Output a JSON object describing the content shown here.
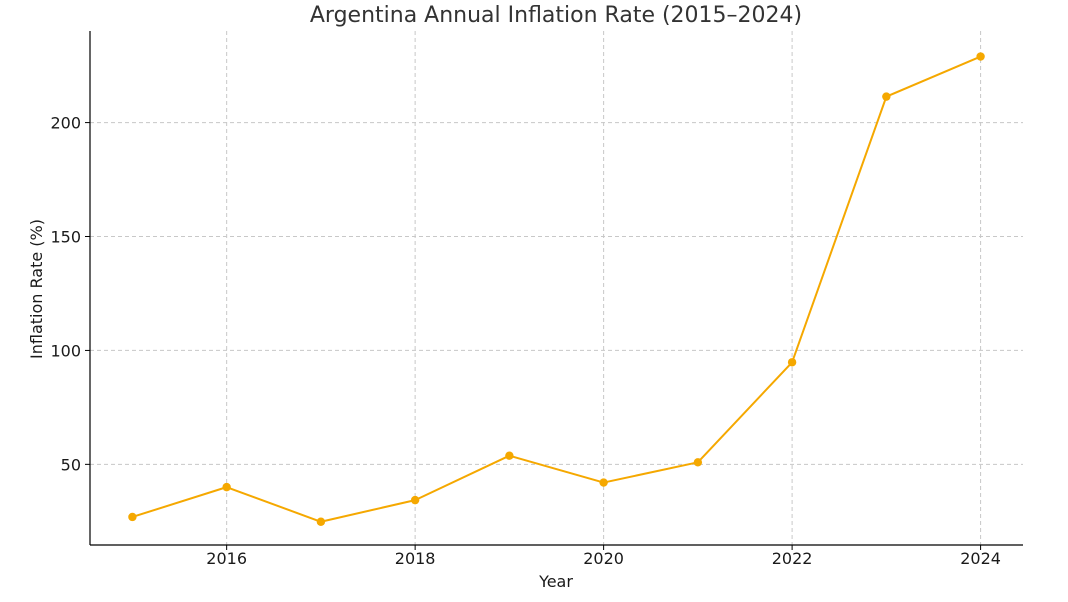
{
  "chart_data": {
    "type": "line",
    "title": "Argentina Annual Inflation Rate (2015–2024)",
    "xlabel": "Year",
    "ylabel": "Inflation Rate (%)",
    "x": [
      2015,
      2016,
      2017,
      2018,
      2019,
      2020,
      2021,
      2022,
      2023,
      2024
    ],
    "series": [
      {
        "name": "Inflation Rate",
        "values": [
          26.9,
          40.0,
          24.8,
          34.3,
          53.8,
          42.0,
          50.9,
          94.8,
          211.4,
          229.0
        ]
      }
    ],
    "xlim": [
      2014.55,
      2024.45
    ],
    "ylim": [
      14.6,
      240.2
    ],
    "x_ticks": [
      "2016",
      "2018",
      "2020",
      "2022",
      "2024"
    ],
    "y_ticks": [
      "50",
      "100",
      "150",
      "200"
    ],
    "grid": true,
    "color": "#f5a800"
  }
}
